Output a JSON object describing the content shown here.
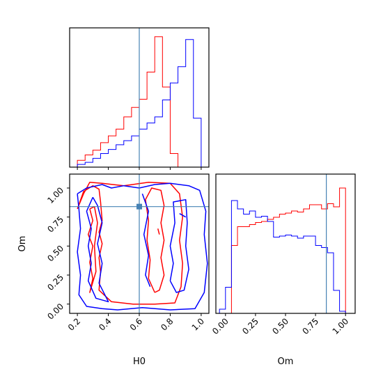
{
  "chart_data": {
    "type": "corner",
    "parameters": [
      "H0",
      "Om"
    ],
    "truth": {
      "H0": 0.6,
      "Om": 0.84,
      "color": "#4682b4"
    },
    "series_colors": {
      "red": "#ff0000",
      "blue": "#0000ff"
    },
    "marginals": {
      "H0": {
        "xlim": [
          0.15,
          1.05
        ],
        "bin_edges": [
          0.2,
          0.25,
          0.3,
          0.35,
          0.4,
          0.45,
          0.5,
          0.55,
          0.6,
          0.65,
          0.7,
          0.75,
          0.8,
          0.85,
          0.9,
          0.95,
          1.0
        ],
        "red": [
          0.1,
          0.18,
          0.25,
          0.36,
          0.46,
          0.56,
          0.74,
          0.88,
          1.0,
          1.4,
          1.92,
          1.18,
          0.2,
          0.0,
          0.0,
          0.0
        ],
        "blue": [
          0.04,
          0.07,
          0.13,
          0.2,
          0.26,
          0.33,
          0.39,
          0.46,
          0.56,
          0.65,
          0.74,
          0.99,
          1.24,
          1.48,
          1.88,
          0.72
        ]
      },
      "Om": {
        "xlim": [
          -0.08,
          1.08
        ],
        "ticks": [
          "0.00",
          "0.25",
          "0.50",
          "0.75",
          "1.00"
        ],
        "bin_edges": [
          -0.05,
          0.0,
          0.05,
          0.1,
          0.15,
          0.2,
          0.25,
          0.3,
          0.35,
          0.4,
          0.45,
          0.5,
          0.55,
          0.6,
          0.65,
          0.7,
          0.75,
          0.8,
          0.85,
          0.9,
          0.95,
          1.0,
          1.05
        ],
        "red": [
          0.0,
          0.0,
          0.65,
          0.83,
          0.83,
          0.85,
          0.87,
          0.88,
          0.9,
          0.92,
          0.95,
          0.96,
          0.98,
          0.97,
          1.0,
          1.04,
          1.04,
          1.0,
          1.05,
          1.02,
          1.2,
          0.0
        ],
        "blue": [
          0.04,
          0.25,
          1.08,
          1.0,
          0.95,
          0.98,
          0.92,
          0.93,
          0.88,
          0.73,
          0.74,
          0.75,
          0.74,
          0.72,
          0.74,
          0.74,
          0.65,
          0.63,
          0.58,
          0.22,
          0.02,
          0.0
        ]
      }
    },
    "joint": {
      "xlabel": "H0",
      "ylabel": "Om",
      "xlim": [
        0.15,
        1.05
      ],
      "ylim": [
        -0.08,
        1.12
      ],
      "x_ticks": [
        "0.2",
        "0.4",
        "0.6",
        "0.8",
        "1.0"
      ],
      "y_ticks": [
        "0.00",
        "0.25",
        "0.50",
        "0.75",
        "1.00"
      ],
      "red_contours": [
        [
          [
            0.2,
            0.82
          ],
          [
            0.24,
            0.97
          ],
          [
            0.3,
            1.02
          ],
          [
            0.34,
            0.99
          ],
          [
            0.35,
            0.88
          ],
          [
            0.36,
            0.72
          ],
          [
            0.34,
            0.62
          ],
          [
            0.36,
            0.52
          ],
          [
            0.34,
            0.4
          ],
          [
            0.35,
            0.28
          ],
          [
            0.34,
            0.12
          ],
          [
            0.42,
            0.02
          ],
          [
            0.56,
            0.0
          ],
          [
            0.7,
            0.0
          ],
          [
            0.83,
            0.01
          ],
          [
            0.87,
            0.15
          ],
          [
            0.88,
            0.35
          ],
          [
            0.86,
            0.55
          ],
          [
            0.88,
            0.75
          ],
          [
            0.86,
            0.95
          ],
          [
            0.8,
            1.04
          ],
          [
            0.66,
            1.05
          ],
          [
            0.5,
            1.02
          ],
          [
            0.36,
            1.04
          ],
          [
            0.28,
            1.05
          ],
          [
            0.24,
            0.95
          ],
          [
            0.2,
            0.82
          ]
        ],
        [
          [
            0.28,
            0.82
          ],
          [
            0.3,
            0.72
          ],
          [
            0.27,
            0.6
          ],
          [
            0.3,
            0.5
          ],
          [
            0.28,
            0.36
          ],
          [
            0.3,
            0.22
          ],
          [
            0.28,
            0.1
          ],
          [
            0.32,
            0.28
          ],
          [
            0.31,
            0.5
          ],
          [
            0.33,
            0.7
          ],
          [
            0.31,
            0.84
          ],
          [
            0.28,
            0.82
          ]
        ],
        [
          [
            0.7,
            0.1
          ],
          [
            0.66,
            0.22
          ],
          [
            0.67,
            0.38
          ],
          [
            0.65,
            0.55
          ],
          [
            0.66,
            0.72
          ],
          [
            0.64,
            0.9
          ],
          [
            0.68,
            1.0
          ],
          [
            0.74,
            0.98
          ],
          [
            0.76,
            0.85
          ],
          [
            0.74,
            0.7
          ],
          [
            0.76,
            0.55
          ],
          [
            0.74,
            0.4
          ],
          [
            0.76,
            0.25
          ],
          [
            0.73,
            0.12
          ],
          [
            0.7,
            0.1
          ]
        ],
        [
          [
            0.72,
            0.65
          ],
          [
            0.73,
            0.6
          ]
        ]
      ],
      "blue_contours": [
        [
          [
            0.2,
            0.95
          ],
          [
            0.26,
            1.0
          ],
          [
            0.36,
            1.03
          ],
          [
            0.42,
            1.0
          ],
          [
            0.5,
            1.02
          ],
          [
            0.6,
            1.0
          ],
          [
            0.7,
            1.03
          ],
          [
            0.8,
            1.04
          ],
          [
            0.92,
            1.02
          ],
          [
            0.99,
            0.98
          ],
          [
            1.03,
            0.8
          ],
          [
            1.02,
            0.6
          ],
          [
            1.04,
            0.35
          ],
          [
            1.02,
            0.1
          ],
          [
            0.96,
            -0.04
          ],
          [
            0.8,
            -0.05
          ],
          [
            0.62,
            -0.03
          ],
          [
            0.46,
            -0.05
          ],
          [
            0.36,
            -0.04
          ],
          [
            0.26,
            -0.02
          ],
          [
            0.21,
            0.08
          ],
          [
            0.22,
            0.25
          ],
          [
            0.2,
            0.45
          ],
          [
            0.22,
            0.65
          ],
          [
            0.21,
            0.82
          ],
          [
            0.2,
            0.95
          ]
        ],
        [
          [
            0.3,
            0.92
          ],
          [
            0.26,
            0.8
          ],
          [
            0.29,
            0.65
          ],
          [
            0.27,
            0.5
          ],
          [
            0.29,
            0.35
          ],
          [
            0.27,
            0.2
          ],
          [
            0.32,
            0.05
          ],
          [
            0.4,
            0.02
          ],
          [
            0.34,
            0.18
          ],
          [
            0.36,
            0.35
          ],
          [
            0.33,
            0.52
          ],
          [
            0.36,
            0.7
          ],
          [
            0.33,
            0.85
          ],
          [
            0.3,
            0.92
          ]
        ],
        [
          [
            0.62,
            0.95
          ],
          [
            0.66,
            0.8
          ],
          [
            0.63,
            0.6
          ],
          [
            0.66,
            0.42
          ],
          [
            0.64,
            0.25
          ],
          [
            0.67,
            0.15
          ]
        ],
        [
          [
            0.8,
            0.2
          ],
          [
            0.82,
            0.35
          ],
          [
            0.8,
            0.5
          ],
          [
            0.83,
            0.7
          ],
          [
            0.82,
            0.88
          ],
          [
            0.9,
            0.9
          ],
          [
            0.91,
            0.7
          ],
          [
            0.9,
            0.5
          ],
          [
            0.92,
            0.3
          ],
          [
            0.89,
            0.12
          ],
          [
            0.84,
            0.1
          ],
          [
            0.8,
            0.2
          ]
        ],
        [
          [
            0.86,
            0.78
          ],
          [
            0.9,
            0.75
          ]
        ]
      ]
    }
  }
}
